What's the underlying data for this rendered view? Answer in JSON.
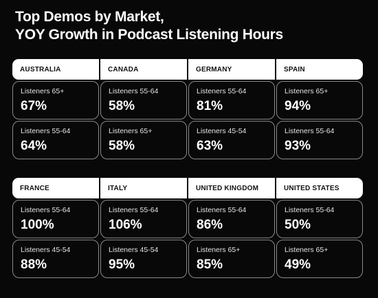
{
  "title": {
    "line1": "Top Demos by Market,",
    "line2": "YOY Growth in Podcast Listening Hours"
  },
  "markets": [
    {
      "name": "AUSTRALIA",
      "entries": [
        {
          "label": "Listeners 65+",
          "value": "67%"
        },
        {
          "label": "Listeners 55-64",
          "value": "64%"
        }
      ]
    },
    {
      "name": "CANADA",
      "entries": [
        {
          "label": "Listeners 55-64",
          "value": "58%"
        },
        {
          "label": "Listeners 65+",
          "value": "58%"
        }
      ]
    },
    {
      "name": "GERMANY",
      "entries": [
        {
          "label": "Listeners 55-64",
          "value": "81%"
        },
        {
          "label": "Listeners 45-54",
          "value": "63%"
        }
      ]
    },
    {
      "name": "SPAIN",
      "entries": [
        {
          "label": "Listeners 65+",
          "value": "94%"
        },
        {
          "label": "Listeners 55-64",
          "value": "93%"
        }
      ]
    },
    {
      "name": "FRANCE",
      "entries": [
        {
          "label": "Listeners 55-64",
          "value": "100%"
        },
        {
          "label": "Listeners 45-54",
          "value": "88%"
        }
      ]
    },
    {
      "name": "ITALY",
      "entries": [
        {
          "label": "Listeners 55-64",
          "value": "106%"
        },
        {
          "label": "Listeners 45-54",
          "value": "95%"
        }
      ]
    },
    {
      "name": "UNITED KINGDOM",
      "entries": [
        {
          "label": "Listeners 55-64",
          "value": "86%"
        },
        {
          "label": "Listeners 65+",
          "value": "85%"
        }
      ]
    },
    {
      "name": "UNITED STATES",
      "entries": [
        {
          "label": "Listeners 55-64",
          "value": "50%"
        },
        {
          "label": "Listeners 65+",
          "value": "49%"
        }
      ]
    }
  ]
}
